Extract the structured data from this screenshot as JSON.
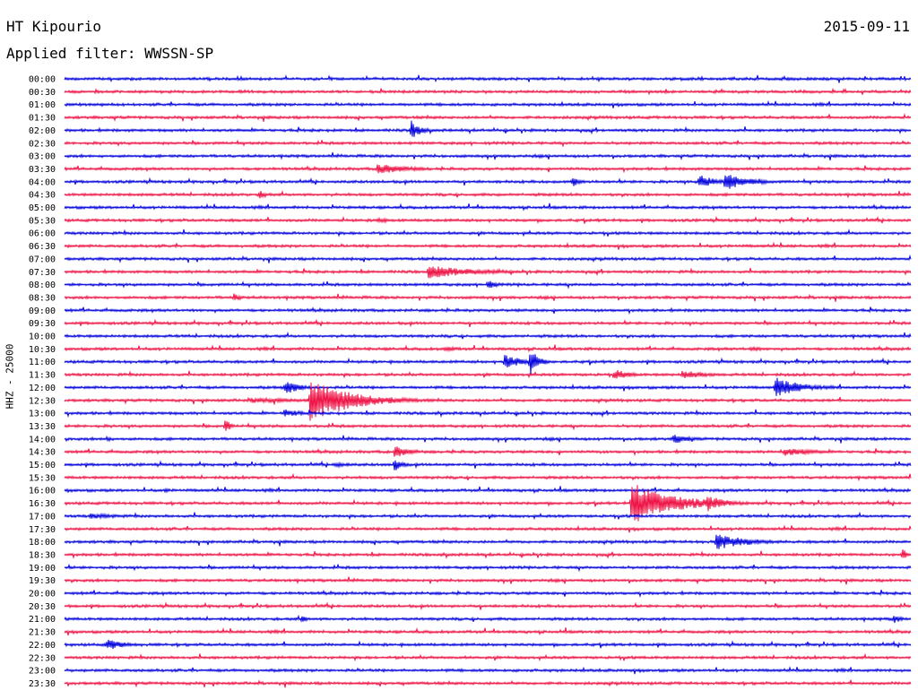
{
  "header": {
    "station": "HT Kipourio",
    "date": "2015-09-11",
    "filter": "Applied filter: WWSSN-SP"
  },
  "colors": {
    "even": "#0000dd",
    "odd": "#ee1144"
  },
  "chart_data": {
    "type": "line",
    "title": "HT Kipourio",
    "subtitle": "Applied filter: WWSSN-SP",
    "ylabel": "HHZ - 25000",
    "grid": false,
    "rows": [
      "00:00",
      "00:30",
      "01:00",
      "01:30",
      "02:00",
      "02:30",
      "03:00",
      "03:30",
      "04:00",
      "04:30",
      "05:00",
      "05:30",
      "06:00",
      "06:30",
      "07:00",
      "07:30",
      "08:00",
      "08:30",
      "09:00",
      "09:30",
      "10:00",
      "10:30",
      "11:00",
      "11:30",
      "12:00",
      "12:30",
      "13:00",
      "13:30",
      "14:00",
      "14:30",
      "15:00",
      "15:30",
      "16:00",
      "16:30",
      "17:00",
      "17:30",
      "18:00",
      "18:30",
      "19:00",
      "19:30",
      "20:00",
      "20:30",
      "21:00",
      "21:30",
      "22:00",
      "22:30",
      "23:00",
      "23:30"
    ],
    "events": [
      {
        "row": 4,
        "x": 0.41,
        "amp": 12,
        "dur": 0.01
      },
      {
        "row": 7,
        "x": 0.37,
        "amp": 6,
        "dur": 0.04
      },
      {
        "row": 8,
        "x": 0.6,
        "amp": 6,
        "dur": 0.01
      },
      {
        "row": 8,
        "x": 0.75,
        "amp": 8,
        "dur": 0.02
      },
      {
        "row": 8,
        "x": 0.78,
        "amp": 10,
        "dur": 0.03
      },
      {
        "row": 9,
        "x": 0.23,
        "amp": 5,
        "dur": 0.01
      },
      {
        "row": 11,
        "x": 0.37,
        "amp": 4,
        "dur": 0.01
      },
      {
        "row": 15,
        "x": 0.43,
        "amp": 8,
        "dur": 0.05
      },
      {
        "row": 15,
        "x": 0.5,
        "amp": 3,
        "dur": 0.04
      },
      {
        "row": 16,
        "x": 0.5,
        "amp": 6,
        "dur": 0.01
      },
      {
        "row": 17,
        "x": 0.2,
        "amp": 5,
        "dur": 0.01
      },
      {
        "row": 21,
        "x": 0.45,
        "amp": 3,
        "dur": 0.02
      },
      {
        "row": 21,
        "x": 0.81,
        "amp": 3,
        "dur": 0.02
      },
      {
        "row": 22,
        "x": 0.55,
        "amp": 16,
        "dur": 0.01
      },
      {
        "row": 22,
        "x": 0.52,
        "amp": 9,
        "dur": 0.02
      },
      {
        "row": 23,
        "x": 0.65,
        "amp": 6,
        "dur": 0.02
      },
      {
        "row": 23,
        "x": 0.73,
        "amp": 5,
        "dur": 0.03
      },
      {
        "row": 24,
        "x": 0.26,
        "amp": 8,
        "dur": 0.02
      },
      {
        "row": 24,
        "x": 0.84,
        "amp": 12,
        "dur": 0.03
      },
      {
        "row": 25,
        "x": 0.29,
        "amp": 24,
        "dur": 0.05
      },
      {
        "row": 25,
        "x": 0.22,
        "amp": 3,
        "dur": 0.08
      },
      {
        "row": 26,
        "x": 0.26,
        "amp": 5,
        "dur": 0.02
      },
      {
        "row": 27,
        "x": 0.19,
        "amp": 10,
        "dur": 0.005
      },
      {
        "row": 28,
        "x": 0.72,
        "amp": 6,
        "dur": 0.02
      },
      {
        "row": 28,
        "x": 0.05,
        "amp": 4,
        "dur": 0.005
      },
      {
        "row": 29,
        "x": 0.39,
        "amp": 7,
        "dur": 0.02
      },
      {
        "row": 29,
        "x": 0.85,
        "amp": 5,
        "dur": 0.04
      },
      {
        "row": 30,
        "x": 0.39,
        "amp": 8,
        "dur": 0.01
      },
      {
        "row": 30,
        "x": 0.32,
        "amp": 3,
        "dur": 0.02
      },
      {
        "row": 32,
        "x": 0.12,
        "amp": 4,
        "dur": 0.005
      },
      {
        "row": 33,
        "x": 0.67,
        "amp": 24,
        "dur": 0.05
      },
      {
        "row": 33,
        "x": 0.76,
        "amp": 10,
        "dur": 0.02
      },
      {
        "row": 34,
        "x": 0.03,
        "amp": 3,
        "dur": 0.05
      },
      {
        "row": 36,
        "x": 0.77,
        "amp": 9,
        "dur": 0.04
      },
      {
        "row": 37,
        "x": 0.99,
        "amp": 8,
        "dur": 0.005
      },
      {
        "row": 42,
        "x": 0.28,
        "amp": 4,
        "dur": 0.01
      },
      {
        "row": 42,
        "x": 0.98,
        "amp": 5,
        "dur": 0.01
      },
      {
        "row": 44,
        "x": 0.05,
        "amp": 7,
        "dur": 0.02
      }
    ]
  }
}
